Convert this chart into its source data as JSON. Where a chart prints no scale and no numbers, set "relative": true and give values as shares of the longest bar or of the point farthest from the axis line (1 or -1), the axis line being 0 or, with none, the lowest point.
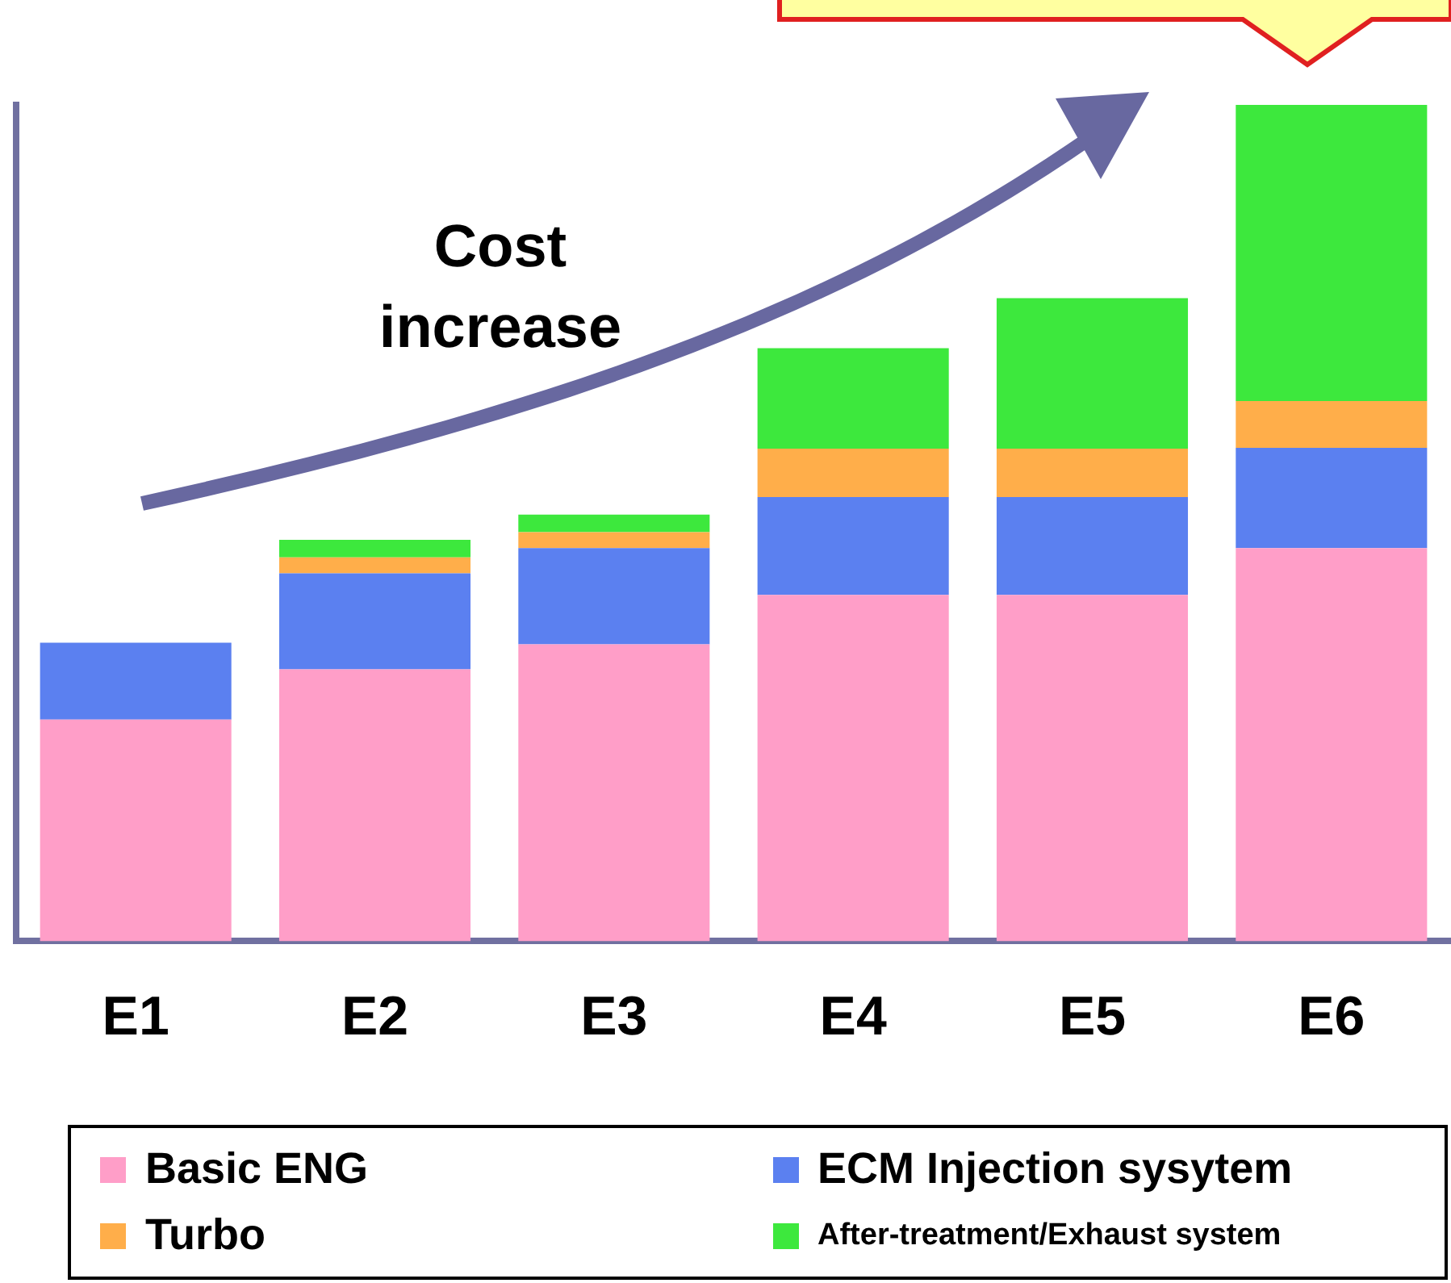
{
  "chart_data": {
    "type": "bar",
    "stacked": true,
    "relative": true,
    "legend": "bottom",
    "grid": false,
    "categories": [
      "E1",
      "E2",
      "E3",
      "E4",
      "E5",
      "E6"
    ],
    "series": [
      {
        "name": "Basic ENG",
        "color": "#ff9ec8",
        "values": [
          0.265,
          0.325,
          0.355,
          0.414,
          0.414,
          0.47
        ]
      },
      {
        "name": "ECM Injection sysytem",
        "color": "#5b80f0",
        "values": [
          0.092,
          0.115,
          0.115,
          0.117,
          0.117,
          0.12
        ]
      },
      {
        "name": "Turbo",
        "color": "#ffae4a",
        "values": [
          0,
          0.019,
          0.019,
          0.058,
          0.058,
          0.056
        ]
      },
      {
        "name": "After-treatment/Exhaust system",
        "color": "#3de83d",
        "values": [
          0,
          0.021,
          0.021,
          0.12,
          0.18,
          0.354
        ]
      }
    ],
    "annotations": [
      "Cost increase"
    ]
  }
}
